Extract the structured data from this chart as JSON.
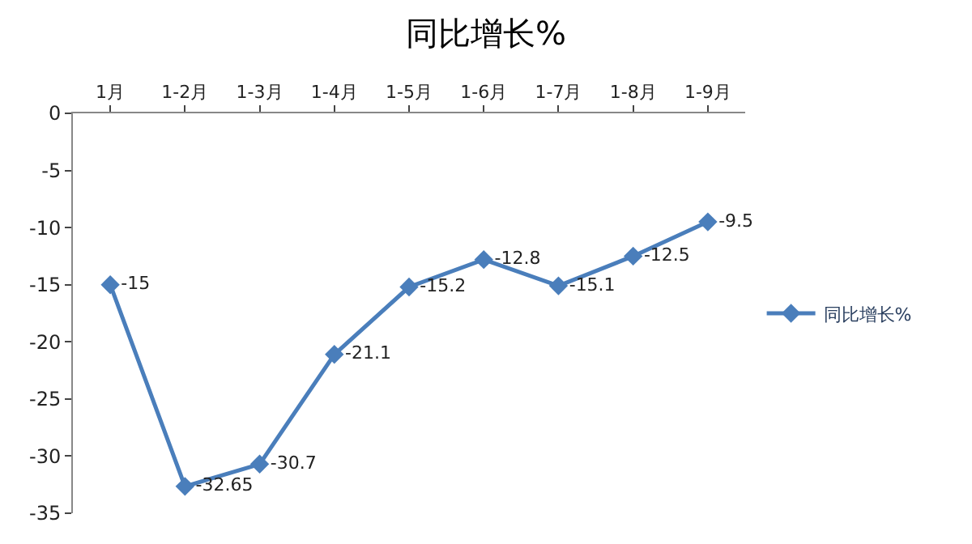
{
  "chart_data": {
    "type": "line",
    "title": "同比增长%",
    "categories": [
      "1月",
      "1-2月",
      "1-3月",
      "1-4月",
      "1-5月",
      "1-6月",
      "1-7月",
      "1-8月",
      "1-9月"
    ],
    "series": [
      {
        "name": "同比增长%",
        "color": "#4a7ebb",
        "values": [
          -15,
          -32.65,
          -30.7,
          -21.1,
          -15.2,
          -12.8,
          -15.1,
          -12.5,
          -9.5
        ]
      }
    ],
    "ylim": [
      -35,
      0
    ],
    "yticks": [
      0,
      -5,
      -10,
      -15,
      -20,
      -25,
      -30,
      -35
    ],
    "data_labels": true,
    "marker": "diamond",
    "line_style": "solid",
    "legend": "right",
    "grid": false
  }
}
